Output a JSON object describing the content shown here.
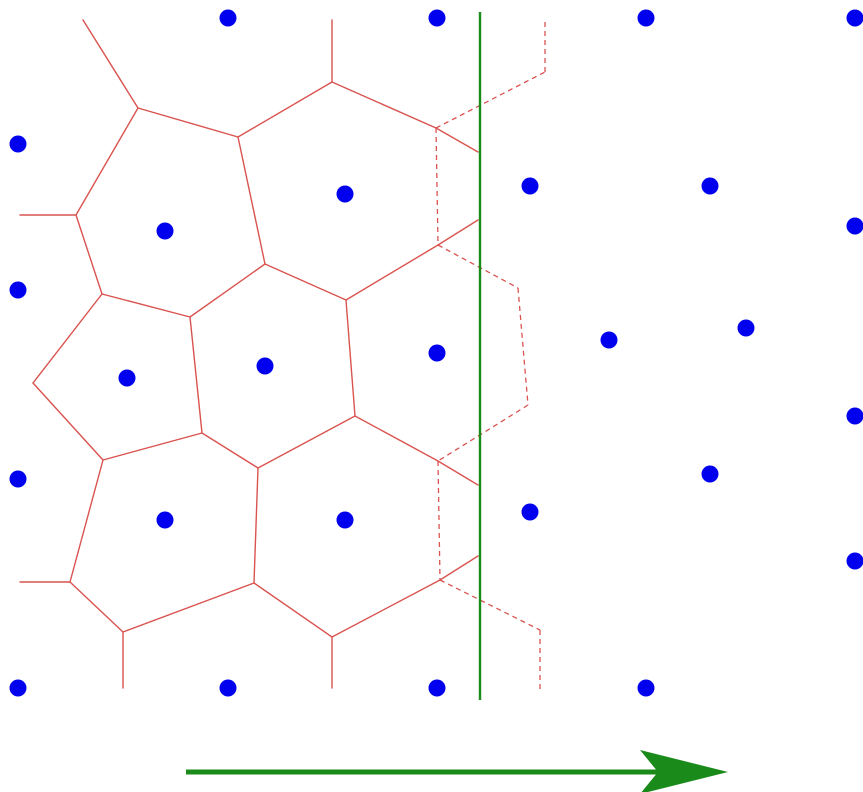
{
  "diagram": {
    "type": "voronoi-sweep-line",
    "colors": {
      "background": "#ffffff",
      "sites": "#0000ee",
      "edges": "#d9534f",
      "sweep_line": "#1a8a1a",
      "arrow": "#1a8a1a"
    },
    "edge_style": {
      "completed": "solid",
      "pending": "dashed"
    },
    "arrow_direction": "right",
    "icons": {
      "arrow": "arrow-right-icon",
      "site": "circle-dot-icon"
    }
  }
}
